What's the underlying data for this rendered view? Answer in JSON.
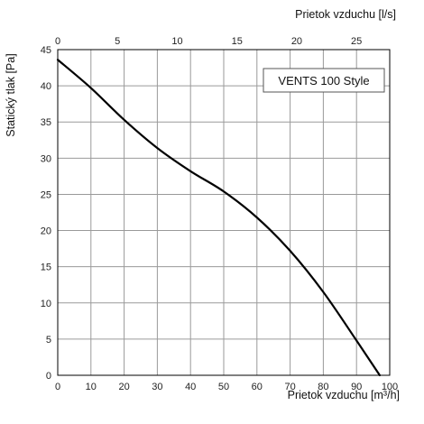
{
  "chart_data": {
    "type": "line",
    "title": "",
    "xlabel": "Prietok vzduchu [m³/h]",
    "x2label": "Prietok vzduchu [l/s]",
    "ylabel": "Statický tlak [Pa]",
    "xlim": [
      0,
      100
    ],
    "x2lim": [
      0,
      27.78
    ],
    "ylim": [
      0,
      45
    ],
    "x_ticks": [
      0,
      10,
      20,
      30,
      40,
      50,
      60,
      70,
      80,
      90,
      100
    ],
    "x2_ticks": [
      0,
      5,
      10,
      15,
      20,
      25
    ],
    "y_ticks": [
      0,
      5,
      10,
      15,
      20,
      25,
      30,
      35,
      40,
      45
    ],
    "grid": true,
    "legend_position": "top-right",
    "series": [
      {
        "name": "VENTS 100 Style",
        "x": [
          0,
          10,
          20,
          30,
          40,
          50,
          60,
          70,
          80,
          90,
          97
        ],
        "y": [
          43.6,
          39.7,
          35.3,
          31.4,
          28.2,
          25.4,
          21.8,
          17.2,
          11.5,
          4.8,
          0
        ]
      }
    ],
    "colors": {
      "line": "#000000",
      "grid": "#9a9a9a",
      "frame": "#000000"
    }
  }
}
